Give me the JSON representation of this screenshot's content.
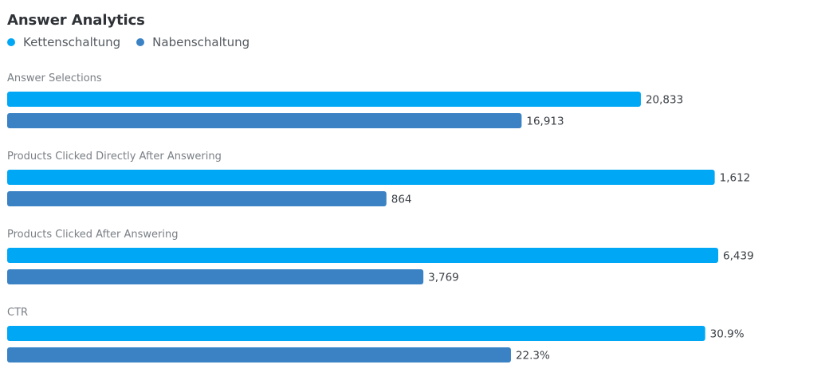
{
  "title": "Answer Analytics",
  "legend": [
    {
      "label": "Kettenschaltung",
      "color": "#00a7f5"
    },
    {
      "label": "Nabenschaltung",
      "color": "#3a82c4"
    }
  ],
  "chart_data": {
    "type": "bar",
    "orientation": "horizontal",
    "title": "Answer Analytics",
    "legend_position": "top-left",
    "groups": [
      {
        "label": "Answer Selections",
        "max_value": 22800,
        "bars": [
          {
            "series": "Kettenschaltung",
            "value": 20833,
            "display": "20,833"
          },
          {
            "series": "Nabenschaltung",
            "value": 16913,
            "display": "16,913"
          }
        ]
      },
      {
        "label": "Products Clicked Directly After Answering",
        "max_value": 1580,
        "bars": [
          {
            "series": "Kettenschaltung",
            "value": 1612,
            "display": "1,612"
          },
          {
            "series": "Nabenschaltung",
            "value": 864,
            "display": "864"
          }
        ]
      },
      {
        "label": "Products Clicked After Answering",
        "max_value": 6280,
        "bars": [
          {
            "series": "Kettenschaltung",
            "value": 6439,
            "display": "6,439"
          },
          {
            "series": "Nabenschaltung",
            "value": 3769,
            "display": "3,769"
          }
        ]
      },
      {
        "label": "CTR",
        "max_value": 30.7,
        "bars": [
          {
            "series": "Kettenschaltung",
            "value": 30.9,
            "display": "30.9%"
          },
          {
            "series": "Nabenschaltung",
            "value": 22.3,
            "display": "22.3%"
          }
        ]
      }
    ]
  }
}
